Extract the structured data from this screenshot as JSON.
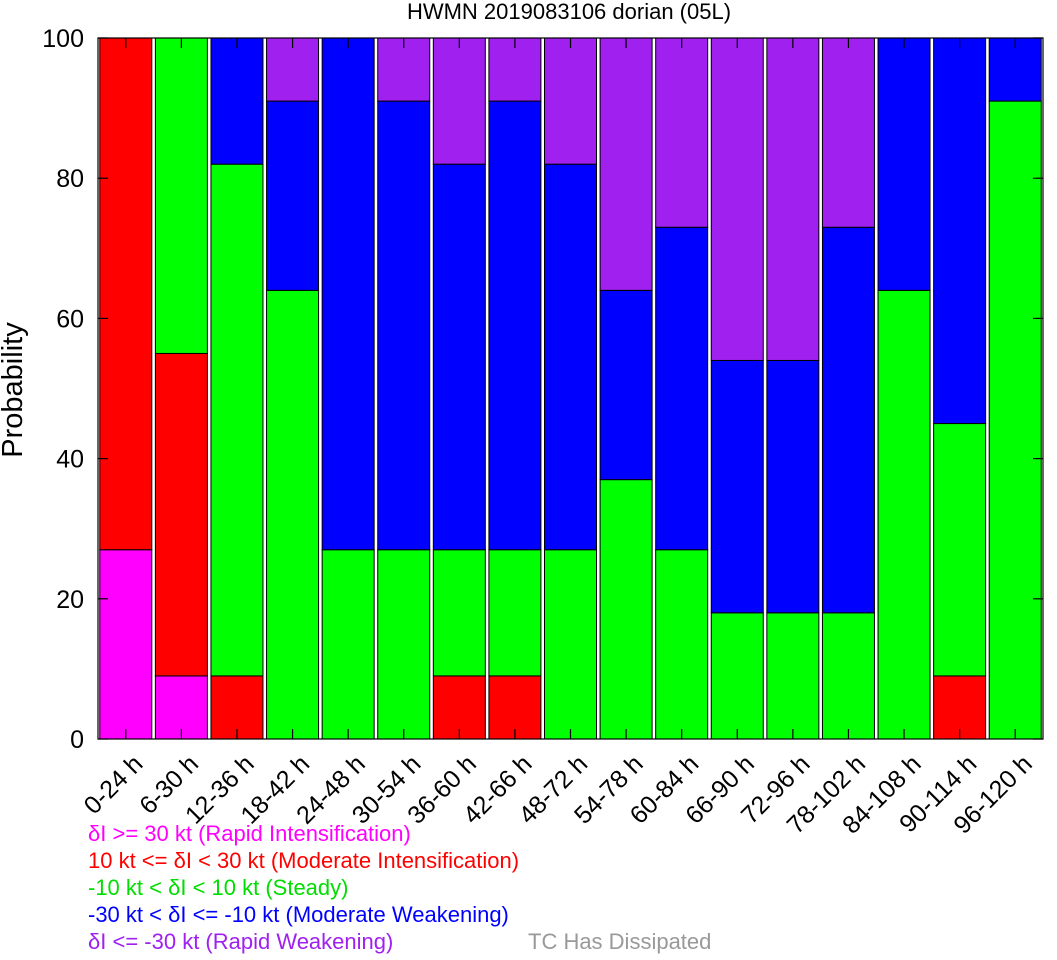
{
  "chart_data": {
    "type": "bar",
    "stacked": true,
    "title": "HWMN 2019083106 dorian (05L)",
    "ylabel": "Probability",
    "xlabel": "",
    "ylim": [
      0,
      100
    ],
    "yticks": [
      0,
      20,
      40,
      60,
      80,
      100
    ],
    "categories": [
      "0-24 h",
      "6-30 h",
      "12-36 h",
      "18-42 h",
      "24-48 h",
      "30-54 h",
      "36-60 h",
      "42-66 h",
      "48-72 h",
      "54-78 h",
      "60-84 h",
      "66-90 h",
      "72-96 h",
      "78-102 h",
      "84-108 h",
      "90-114 h",
      "96-120 h"
    ],
    "series": [
      {
        "key": "ri",
        "color": "#ff00ff",
        "values": [
          27,
          9,
          0,
          0,
          0,
          0,
          0,
          0,
          0,
          0,
          0,
          0,
          0,
          0,
          0,
          0,
          0
        ]
      },
      {
        "key": "mi",
        "color": "#ff0000",
        "values": [
          73,
          46,
          9,
          0,
          0,
          0,
          9,
          9,
          0,
          0,
          0,
          0,
          0,
          0,
          0,
          9,
          0
        ]
      },
      {
        "key": "st",
        "color": "#00ff00",
        "values": [
          0,
          45,
          73,
          64,
          27,
          27,
          18,
          18,
          27,
          37,
          27,
          18,
          18,
          18,
          64,
          36,
          91
        ]
      },
      {
        "key": "mw",
        "color": "#0000ff",
        "values": [
          0,
          0,
          18,
          27,
          73,
          64,
          55,
          64,
          55,
          27,
          46,
          36,
          36,
          55,
          36,
          55,
          9
        ]
      },
      {
        "key": "rw",
        "color": "#a020f0",
        "values": [
          0,
          0,
          0,
          9,
          0,
          9,
          18,
          9,
          18,
          36,
          27,
          46,
          46,
          27,
          0,
          0,
          0
        ]
      }
    ]
  },
  "legend": {
    "ri": {
      "label": "δI >= 30 kt (Rapid Intensification)",
      "color": "#ff00ff"
    },
    "mi": {
      "label": "10 kt <= δI < 30 kt (Moderate Intensification)",
      "color": "#ff0000"
    },
    "st": {
      "label": "-10 kt < δI < 10 kt (Steady)",
      "color": "#00ff00"
    },
    "mw": {
      "label": "-30 kt < δI <= -10 kt (Moderate Weakening)",
      "color": "#0000ff"
    },
    "rw": {
      "label": "δI <= -30 kt (Rapid Weakening)",
      "color": "#a020f0"
    },
    "dissipated": {
      "label": "TC Has Dissipated",
      "color": "#999999"
    }
  }
}
